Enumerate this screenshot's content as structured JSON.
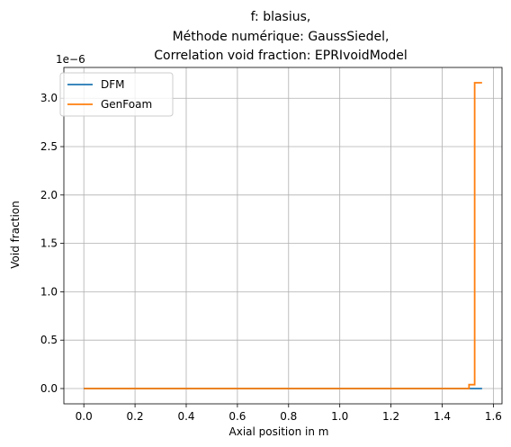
{
  "chart_data": {
    "type": "line",
    "title_lines": [
      "f: blasius,",
      "Méthode numérique: GaussSiedel,",
      "Correlation void fraction: EPRIvoidModel"
    ],
    "xlabel": "Axial position in m",
    "ylabel": "Void fraction",
    "y_offset_label": "1e−6",
    "xlim": [
      -0.078,
      1.6338
    ],
    "ylim": [
      -0.158,
      3.318
    ],
    "xticks": [
      0.0,
      0.2,
      0.4,
      0.6,
      0.8,
      1.0,
      1.2,
      1.4,
      1.6
    ],
    "xtick_labels": [
      "0.0",
      "0.2",
      "0.4",
      "0.6",
      "0.8",
      "1.0",
      "1.2",
      "1.4",
      "1.6"
    ],
    "yticks": [
      0.0,
      0.5,
      1.0,
      1.5,
      2.0,
      2.5,
      3.0
    ],
    "ytick_labels": [
      "0.0",
      "0.5",
      "1.0",
      "1.5",
      "2.0",
      "2.5",
      "3.0"
    ],
    "grid": true,
    "legend_position": "top-left",
    "series": [
      {
        "name": "DFM",
        "color": "#1f77b4",
        "step": true,
        "x": [
          0.0,
          1.505,
          1.527,
          1.556
        ],
        "y": [
          0.0,
          0.0,
          0.0,
          0.0
        ]
      },
      {
        "name": "GenFoam",
        "color": "#ff7f0e",
        "step": true,
        "x": [
          0.0,
          1.505,
          1.527,
          1.556
        ],
        "y": [
          0.0,
          0.04,
          3.16,
          3.16
        ]
      }
    ]
  }
}
